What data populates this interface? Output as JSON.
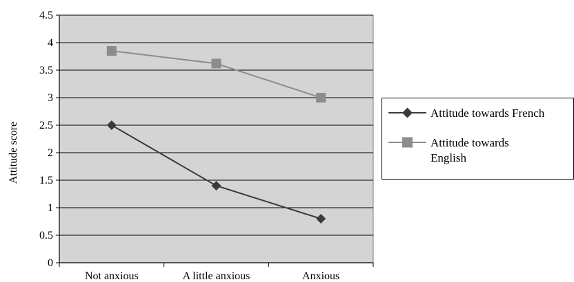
{
  "chart_data": {
    "type": "line",
    "title": "",
    "xlabel": "",
    "ylabel": "Attitude score",
    "categories": [
      "Not anxious",
      "A little anxious",
      "Anxious"
    ],
    "ylim": [
      0,
      4.5
    ],
    "yticks": [
      "0",
      "0.5",
      "1",
      "1.5",
      "2",
      "2.5",
      "3",
      "3.5",
      "4",
      "4.5"
    ],
    "grid": true,
    "legend_position": "right",
    "series": [
      {
        "name": "Attitude towards French",
        "values": [
          2.5,
          1.4,
          0.8
        ],
        "color": "#3a3a3a",
        "marker": "diamond"
      },
      {
        "name": "Attitude towards English",
        "values": [
          3.85,
          3.62,
          3.0
        ],
        "color": "#8c8c8c",
        "marker": "square"
      }
    ],
    "plot_background": "#d4d4d4"
  },
  "legend": {
    "items": [
      {
        "lines": [
          "Attitude towards French"
        ]
      },
      {
        "lines": [
          "Attitude towards",
          "English"
        ]
      }
    ]
  }
}
